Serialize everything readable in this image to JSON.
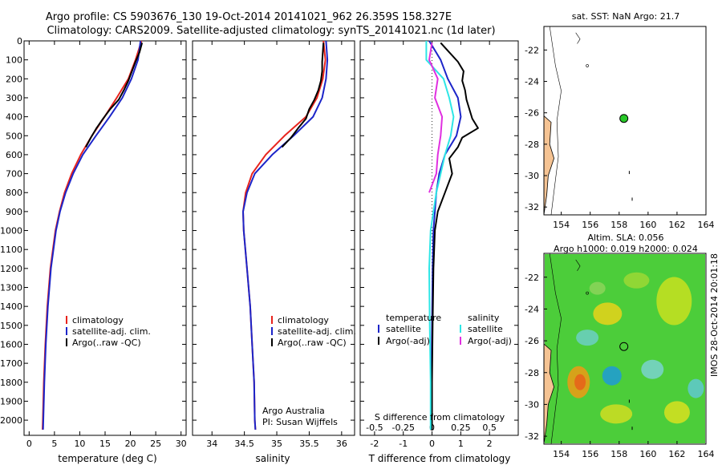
{
  "header": {
    "line1": "Argo profile: CS 5903676_130 19-Oct-2014 20141021_962 26.359S 158.327E",
    "line2": "Climatology: CARS2009. Satellite-adjusted climatology: synTS_20141021.nc (1d later)"
  },
  "credit": "IMOS 28-Oct-2014 20:01:18",
  "colors": {
    "climatology": "#e8231c",
    "satellite": "#1c25c9",
    "argo": "#000000",
    "satellite_diff": "#2ee6e6",
    "argo_diff": "#e030e0",
    "land": "#f5c393"
  },
  "chart_data": [
    {
      "type": "line",
      "xlabel": "temperature (deg C)",
      "ylabel": "",
      "xlim": [
        -1,
        31
      ],
      "ylim": [
        2080,
        0
      ],
      "xticks": [
        "0",
        "5",
        "10",
        "15",
        "20",
        "25",
        "30"
      ],
      "xtick_values": [
        0,
        5,
        10,
        15,
        20,
        25,
        30
      ],
      "yticks": [
        "0",
        "100",
        "200",
        "300",
        "400",
        "500",
        "600",
        "700",
        "800",
        "900",
        "1000",
        "1100",
        "1200",
        "1300",
        "1400",
        "1500",
        "1600",
        "1700",
        "1800",
        "1900",
        "2000"
      ],
      "ytick_values": [
        0,
        100,
        200,
        300,
        400,
        500,
        600,
        700,
        800,
        900,
        1000,
        1100,
        1200,
        1300,
        1400,
        1500,
        1600,
        1700,
        1800,
        1900,
        2000
      ],
      "legend": [
        "climatology",
        "satellite-adj. clim.",
        "Argo(..raw -QC)"
      ],
      "legend_placement": "lower-center",
      "series": [
        {
          "name": "climatology",
          "depth": [
            0,
            100,
            200,
            300,
            400,
            500,
            600,
            700,
            800,
            900,
            1000,
            1200,
            1400,
            1600,
            1800,
            2000,
            2050
          ],
          "values": [
            22.2,
            21.0,
            19.6,
            17.3,
            14.9,
            12.4,
            10.2,
            8.4,
            7.0,
            6.0,
            5.2,
            4.2,
            3.6,
            3.2,
            2.9,
            2.7,
            2.65
          ]
        },
        {
          "name": "satellite-adj. clim.",
          "depth": [
            0,
            100,
            200,
            300,
            400,
            500,
            600,
            700,
            800,
            900,
            1000,
            1200,
            1400,
            1600,
            1800,
            2000,
            2050
          ],
          "values": [
            22.0,
            21.5,
            20.2,
            18.4,
            15.9,
            13.2,
            10.6,
            8.7,
            7.2,
            6.1,
            5.3,
            4.3,
            3.7,
            3.3,
            3.0,
            2.8,
            2.75
          ]
        },
        {
          "name": "Argo(..raw -QC)",
          "depth": [
            10,
            60,
            110,
            160,
            210,
            260,
            310,
            360,
            410,
            460,
            510,
            560
          ],
          "values": [
            22.3,
            21.8,
            21.0,
            20.3,
            19.6,
            18.7,
            17.7,
            16.0,
            14.6,
            13.3,
            12.2,
            11.2
          ]
        }
      ]
    },
    {
      "type": "line",
      "xlabel": "salinity",
      "xlim": [
        33.7,
        36.2
      ],
      "ylim": [
        2080,
        0
      ],
      "xticks": [
        "34",
        "34.5",
        "35",
        "35.5",
        "36"
      ],
      "xtick_values": [
        34,
        34.5,
        35,
        35.5,
        36
      ],
      "legend": [
        "climatology",
        "satellite-adj. clim.",
        "Argo(..raw -QC)"
      ],
      "legend_placement": "lower-right",
      "annotation": [
        "Argo Australia",
        "PI: Susan Wijffels"
      ],
      "series": [
        {
          "name": "climatology",
          "depth": [
            0,
            100,
            200,
            300,
            400,
            500,
            600,
            700,
            800,
            900,
            1000,
            1200,
            1400,
            1600,
            1800,
            2000,
            2050
          ],
          "values": [
            35.72,
            35.75,
            35.71,
            35.62,
            35.45,
            35.12,
            34.83,
            34.62,
            34.52,
            34.48,
            34.49,
            34.54,
            34.59,
            34.62,
            34.65,
            34.66,
            34.67
          ]
        },
        {
          "name": "satellite-adj. clim.",
          "depth": [
            0,
            100,
            200,
            300,
            400,
            500,
            600,
            700,
            800,
            900,
            1000,
            1200,
            1400,
            1600,
            1800,
            2000,
            2050
          ],
          "values": [
            35.76,
            35.78,
            35.76,
            35.7,
            35.56,
            35.26,
            34.93,
            34.66,
            34.54,
            34.48,
            34.49,
            34.54,
            34.59,
            34.62,
            34.65,
            34.66,
            34.67
          ]
        },
        {
          "name": "Argo(..raw -QC)",
          "depth": [
            10,
            60,
            110,
            160,
            210,
            260,
            310,
            360,
            410,
            460,
            510,
            560
          ],
          "values": [
            35.72,
            35.71,
            35.7,
            35.7,
            35.68,
            35.64,
            35.58,
            35.5,
            35.45,
            35.33,
            35.22,
            35.08
          ]
        }
      ]
    },
    {
      "type": "line",
      "xlabel": "T difference from climatology",
      "xlabel_top": "S difference from climatology",
      "xlim": [
        -2.5,
        3.0
      ],
      "ylim": [
        2080,
        0
      ],
      "xticks": [
        "-2",
        "-1",
        "0",
        "1",
        "2"
      ],
      "xtick_values": [
        -2,
        -1,
        0,
        1,
        2
      ],
      "xticks_top": [
        "-0.5",
        "-0.25",
        "0",
        "0.25",
        "0.5"
      ],
      "xtick_top_positions": [
        -2,
        -1,
        0,
        1,
        2
      ],
      "legend_titles": [
        "temperature",
        "salinity"
      ],
      "legend": [
        "satellite",
        "Argo(-adj)",
        "satellite",
        "Argo(-adj)"
      ],
      "series": [
        {
          "name": "satellite",
          "depth": [
            0,
            100,
            200,
            300,
            400,
            500,
            600,
            700,
            800,
            900,
            1000,
            1200,
            1500,
            1800,
            2050
          ],
          "values": [
            -0.1,
            0.3,
            0.55,
            0.9,
            1.0,
            0.85,
            0.45,
            0.25,
            0.15,
            0.1,
            0.05,
            0.02,
            0.0,
            -0.02,
            0.0
          ]
        },
        {
          "name": "Argo(-adj)",
          "depth": [
            10,
            60,
            110,
            160,
            210,
            260,
            310,
            360,
            410,
            460,
            510,
            560,
            620,
            700,
            800,
            900,
            1000,
            1200,
            1500,
            1800,
            2050
          ],
          "values": [
            0.3,
            0.6,
            0.9,
            1.1,
            1.05,
            1.15,
            1.2,
            1.3,
            1.4,
            1.6,
            1.05,
            0.9,
            0.6,
            0.7,
            0.45,
            0.2,
            0.1,
            0.05,
            0.02,
            0.0,
            0.0
          ]
        },
        {
          "name": "satellite",
          "depth": [
            0,
            100,
            200,
            300,
            400,
            500,
            600,
            700,
            800,
            900,
            1000,
            1200,
            1500,
            1800,
            2050
          ],
          "values": [
            -0.2,
            -0.2,
            0.4,
            0.6,
            0.75,
            0.65,
            0.45,
            0.3,
            0.15,
            0.05,
            -0.05,
            -0.1,
            -0.08,
            -0.05,
            -0.05
          ]
        },
        {
          "name": "Argo(-adj)",
          "depth": [
            10,
            100,
            200,
            300,
            400,
            500,
            600,
            700,
            800
          ],
          "values": [
            0.0,
            -0.1,
            0.2,
            0.1,
            0.35,
            0.3,
            0.2,
            0.15,
            -0.1
          ]
        }
      ]
    },
    {
      "type": "scatter",
      "title": "sat. SST: NaN  Argo: 21.7",
      "xlim": [
        152.8,
        164
      ],
      "ylim": [
        -32.5,
        -20.5
      ],
      "xticks": [
        "154",
        "156",
        "158",
        "160",
        "162",
        "164"
      ],
      "xtick_values": [
        154,
        156,
        158,
        160,
        162,
        164
      ],
      "yticks": [
        "-22",
        "-24",
        "-26",
        "-28",
        "-30",
        "-32"
      ],
      "ytick_values": [
        -22,
        -24,
        -26,
        -28,
        -30,
        -32
      ],
      "points": [
        {
          "x": 158.327,
          "y": -26.359
        }
      ]
    },
    {
      "type": "heatmap",
      "title": [
        "Altim. SLA: 0.056",
        "Argo h1000: 0.019 h2000: 0.024"
      ],
      "xlim": [
        152.8,
        164
      ],
      "ylim": [
        -32.5,
        -20.5
      ],
      "xticks": [
        "154",
        "156",
        "158",
        "160",
        "162",
        "164"
      ],
      "xtick_values": [
        154,
        156,
        158,
        160,
        162,
        164
      ],
      "yticks": [
        "-22",
        "-24",
        "-26",
        "-28",
        "-30",
        "-32"
      ],
      "ytick_values": [
        -22,
        -24,
        -26,
        -28,
        -30,
        -32
      ],
      "points": [
        {
          "x": 158.327,
          "y": -26.359
        }
      ]
    }
  ]
}
